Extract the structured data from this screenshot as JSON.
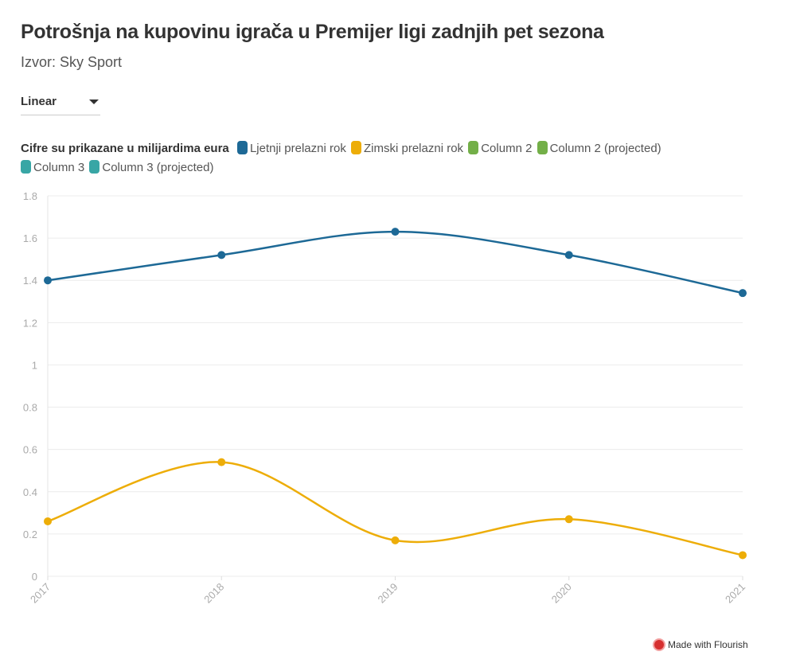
{
  "header": {
    "title": "Potrošnja na kupovinu igrača u Premijer ligi zadnjih pet sezona",
    "subtitle": "Izvor: Sky Sport"
  },
  "controls": {
    "scale_dropdown": "Linear"
  },
  "legend": {
    "title": "Cifre su prikazane u milijardima eura",
    "items": [
      {
        "label": "Ljetnji prelazni rok",
        "color": "#1d6996"
      },
      {
        "label": "Zimski prelazni rok",
        "color": "#edad08"
      },
      {
        "label": "Column 2",
        "color": "#73af48"
      },
      {
        "label": "Column 2 (projected)",
        "color": "#73af48"
      },
      {
        "label": "Column 3",
        "color": "#38a6a5"
      },
      {
        "label": "Column 3 (projected)",
        "color": "#38a6a5"
      }
    ]
  },
  "chart_data": {
    "type": "line",
    "curve": "smooth",
    "x": [
      "2017",
      "2018",
      "2019",
      "2020",
      "2021"
    ],
    "series": [
      {
        "name": "Ljetnji prelazni rok",
        "color": "#1d6996",
        "values": [
          1.4,
          1.52,
          1.63,
          1.52,
          1.34
        ]
      },
      {
        "name": "Zimski prelazni rok",
        "color": "#edad08",
        "values": [
          0.26,
          0.54,
          0.17,
          0.27,
          0.1
        ]
      }
    ],
    "ylim": [
      0,
      1.8
    ],
    "yticks": [
      "0",
      "0.2",
      "0.4",
      "0.6",
      "0.8",
      "1",
      "1.2",
      "1.4",
      "1.6",
      "1.8"
    ],
    "grid": true
  },
  "footer": {
    "credit": "Made with Flourish"
  }
}
